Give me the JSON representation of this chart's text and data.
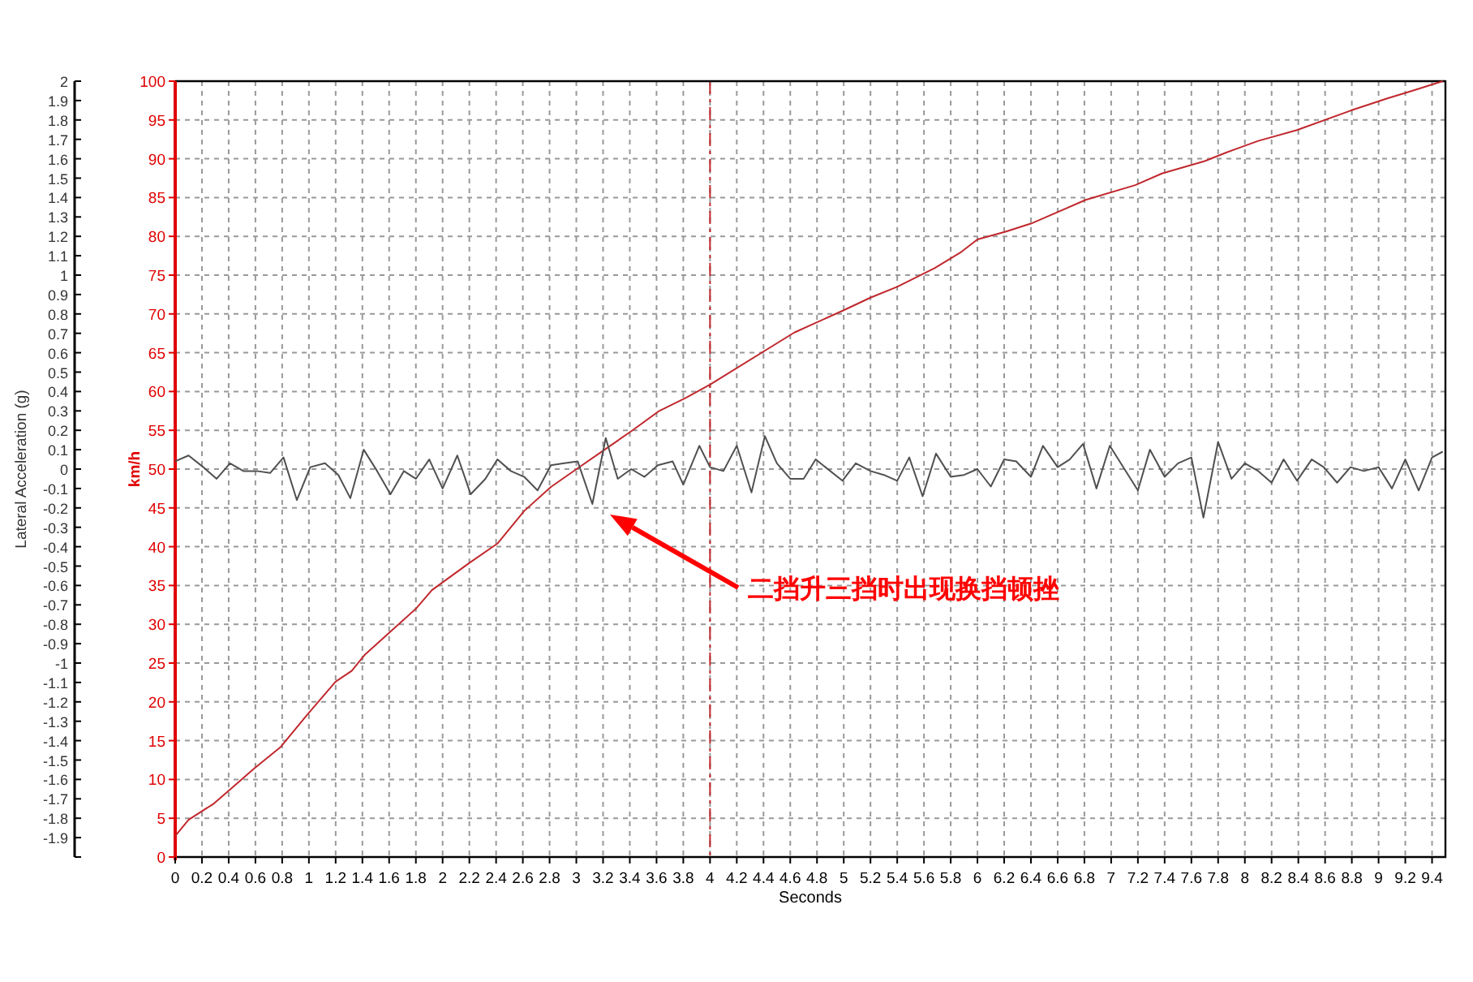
{
  "chart_data": {
    "type": "line",
    "xlabel": "Seconds",
    "ylabel": "km/h",
    "y2label": "Lateral Acceleration (g)",
    "xlim": [
      0,
      9.5
    ],
    "xticks": [
      0,
      0.2,
      0.4,
      0.6,
      0.8,
      1,
      1.2,
      1.4,
      1.6,
      1.8,
      2,
      2.2,
      2.4,
      2.6,
      2.8,
      3,
      3.2,
      3.4,
      3.6,
      3.8,
      4,
      4.2,
      4.4,
      4.6,
      4.8,
      5,
      5.2,
      5.4,
      5.6,
      5.8,
      6,
      6.2,
      6.4,
      6.6,
      6.8,
      7,
      7.2,
      7.4,
      7.6,
      7.8,
      8,
      8.2,
      8.4,
      8.6,
      8.8,
      9,
      9.2,
      9.4
    ],
    "ylim": [
      0,
      100
    ],
    "yticks": [
      0,
      5,
      10,
      15,
      20,
      25,
      30,
      35,
      40,
      45,
      50,
      55,
      60,
      65,
      70,
      75,
      80,
      85,
      90,
      95,
      100
    ],
    "y2lim": [
      -2,
      2
    ],
    "y2ticks": [
      {
        "value": -2,
        "label": null
      },
      -1.9,
      -1.8,
      -1.7,
      -1.6,
      -1.5,
      -1.4,
      -1.3,
      -1.2,
      -1.1,
      -1,
      -0.9,
      -0.8,
      -0.7,
      -0.6,
      -0.5,
      -0.4,
      -0.3,
      -0.2,
      -0.1,
      0,
      0.1,
      0.2,
      0.3,
      0.4,
      0.5,
      0.6,
      0.7,
      0.8,
      0.9,
      1,
      1.1,
      1.2,
      1.3,
      1.4,
      1.5,
      1.6,
      1.7,
      1.8,
      1.9,
      2
    ],
    "grid": true,
    "line_style": "solid",
    "series": [
      {
        "color": "#c0282d",
        "x": [
          0,
          0.1,
          0.29,
          0.43,
          0.59,
          0.79,
          0.99,
          1.2,
          1.32,
          1.42,
          1.6,
          1.8,
          1.92,
          2.2,
          2.41,
          2.61,
          2.81,
          3.01,
          3.22,
          3.42,
          3.62,
          3.82,
          4,
          4.63,
          4.99,
          5.2,
          5.4,
          5.68,
          5.88,
          6,
          6.21,
          6.41,
          6.81,
          7.18,
          7.38,
          7.7,
          7.86,
          8.1,
          8.39,
          8.79,
          9.07,
          9.24,
          9.48
        ],
        "values": [
          2.7,
          4.8,
          6.9,
          9,
          11.4,
          14.2,
          18.4,
          22.6,
          24,
          26.1,
          28.9,
          32,
          34.4,
          37.9,
          40.4,
          44.6,
          47.7,
          50.1,
          52.6,
          55,
          57.5,
          59.2,
          60.9,
          67.6,
          70.4,
          72.1,
          73.5,
          75.9,
          78,
          79.6,
          80.6,
          81.7,
          84.7,
          86.6,
          88.1,
          89.7,
          90.8,
          92.3,
          93.7,
          96.2,
          97.8,
          98.7,
          100
        ]
      },
      {
        "color": "#505050",
        "axis": "y2",
        "x": [
          0,
          0.1,
          0.21,
          0.31,
          0.41,
          0.51,
          0.61,
          0.71,
          0.81,
          0.91,
          1.01,
          1.12,
          1.22,
          1.31,
          1.41,
          1.51,
          1.61,
          1.71,
          1.8,
          1.9,
          2,
          2.11,
          2.21,
          2.32,
          2.41,
          2.51,
          2.61,
          2.71,
          2.81,
          2.91,
          3.01,
          3.12,
          3.22,
          3.31,
          3.41,
          3.51,
          3.61,
          3.72,
          3.8,
          3.92,
          4,
          4.1,
          4.2,
          4.31,
          4.41,
          4.5,
          4.6,
          4.7,
          4.79,
          4.99,
          5.09,
          5.2,
          5.3,
          5.4,
          5.49,
          5.59,
          5.69,
          5.8,
          5.9,
          6,
          6.1,
          6.2,
          6.29,
          6.4,
          6.49,
          6.6,
          6.69,
          6.79,
          6.89,
          6.99,
          7.2,
          7.29,
          7.4,
          7.5,
          7.6,
          7.69,
          7.8,
          7.9,
          8,
          8.1,
          8.2,
          8.29,
          8.39,
          8.5,
          8.59,
          8.69,
          8.79,
          8.89,
          9,
          9.1,
          9.2,
          9.3,
          9.4,
          9.48
        ],
        "values": [
          0.04,
          0.07,
          0.01,
          -0.05,
          0.03,
          -0.01,
          -0.01,
          -0.02,
          0.06,
          -0.16,
          0.01,
          0.03,
          -0.03,
          -0.15,
          0.1,
          -0.01,
          -0.13,
          -0.01,
          -0.05,
          0.05,
          -0.1,
          0.07,
          -0.13,
          -0.05,
          0.05,
          -0.01,
          -0.04,
          -0.11,
          0.02,
          0.03,
          0.04,
          -0.18,
          0.16,
          -0.05,
          0,
          -0.04,
          0.02,
          0.04,
          -0.08,
          0.12,
          0.01,
          -0.01,
          0.12,
          -0.12,
          0.17,
          0.03,
          -0.05,
          -0.05,
          0.05,
          -0.06,
          0.03,
          -0.01,
          -0.03,
          -0.06,
          0.06,
          -0.14,
          0.08,
          -0.04,
          -0.03,
          0,
          -0.09,
          0.05,
          0.04,
          -0.04,
          0.12,
          0.01,
          0.05,
          0.13,
          -0.1,
          0.12,
          -0.11,
          0.1,
          -0.04,
          0.03,
          0.06,
          -0.25,
          0.14,
          -0.05,
          0.03,
          -0.01,
          -0.07,
          0.05,
          -0.06,
          0.05,
          0.01,
          -0.07,
          0.01,
          -0.01,
          0.01,
          -0.1,
          0.05,
          -0.11,
          0.06,
          0.09
        ]
      }
    ],
    "ref_lines": [
      {
        "axis": "x",
        "value": 4,
        "color": "#c0282d",
        "line_style": "dashed"
      }
    ],
    "annotations": [
      "二挡升三挡时出现换挡顿挫"
    ]
  }
}
